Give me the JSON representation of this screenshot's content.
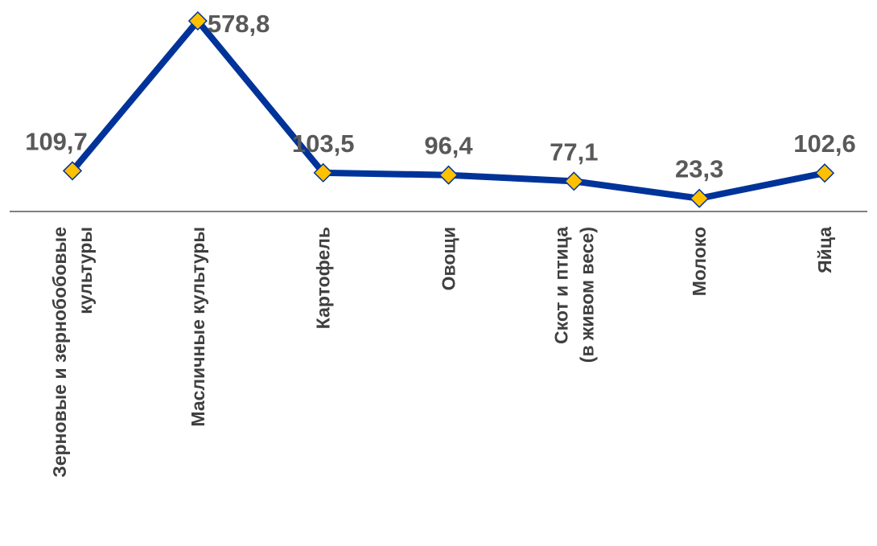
{
  "chart_data": {
    "type": "line",
    "categories": [
      [
        "Зерновые и зернобобовые",
        "культуры"
      ],
      [
        "Масличные культуры"
      ],
      [
        "Картофель"
      ],
      [
        "Овощи"
      ],
      [
        "Скот и птица",
        "(в живом весе)"
      ],
      [
        "Молоко"
      ],
      [
        "Яйца"
      ]
    ],
    "series": [
      {
        "values": [
          109.7,
          578.8,
          103.5,
          96.4,
          77.1,
          23.3,
          102.6
        ],
        "labels": [
          "109,7",
          "578,8",
          "103,5",
          "96,4",
          "77,1",
          "23,3",
          "102,6"
        ]
      }
    ],
    "colors": {
      "line": "#003399",
      "marker_fill": "#FFC000",
      "marker_stroke": "#003399",
      "axis": "#808080",
      "data_label": "#595959",
      "category_label": "#3f3f3f"
    },
    "marker": "diamond",
    "grid": false,
    "legend": "none"
  }
}
